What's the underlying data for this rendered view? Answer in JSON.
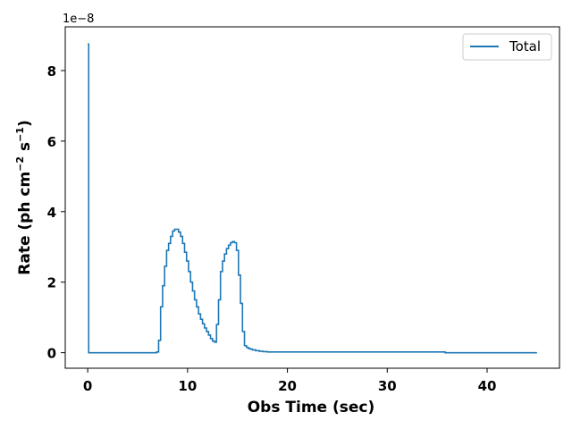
{
  "chart_data": {
    "type": "line",
    "drawstyle": "steps",
    "xlabel": "Obs Time (sec)",
    "ylabel_main": "Rate (ph cm",
    "ylabel_exp1": "−2",
    "ylabel_mid": " s",
    "ylabel_exp2": "−1",
    "ylabel_end": ")",
    "y_offset_text": "1e−8",
    "xlim": [
      -2.25,
      47.25
    ],
    "ylim": [
      -0.44,
      9.24
    ],
    "xticks": [
      0,
      10,
      20,
      30,
      40
    ],
    "xtick_labels": [
      "0",
      "10",
      "20",
      "30",
      "40"
    ],
    "yticks": [
      0,
      2,
      4,
      6,
      8
    ],
    "ytick_labels": [
      "0",
      "2",
      "4",
      "6",
      "8"
    ],
    "legend_position": "top-right",
    "grid": false,
    "series": [
      {
        "name": "Total",
        "color": "#1f77b4",
        "x": [
          0.0,
          0.1,
          0.5,
          1.0,
          2.0,
          3.0,
          4.0,
          5.0,
          6.0,
          6.9,
          7.1,
          7.3,
          7.5,
          7.7,
          7.9,
          8.1,
          8.3,
          8.5,
          8.7,
          8.9,
          9.1,
          9.3,
          9.5,
          9.7,
          9.9,
          10.1,
          10.3,
          10.5,
          10.7,
          10.9,
          11.1,
          11.3,
          11.5,
          11.7,
          11.9,
          12.1,
          12.3,
          12.5,
          12.7,
          12.9,
          13.1,
          13.3,
          13.5,
          13.7,
          13.9,
          14.1,
          14.3,
          14.5,
          14.7,
          14.9,
          15.1,
          15.3,
          15.5,
          15.7,
          15.9,
          16.1,
          16.3,
          16.5,
          16.8,
          17.2,
          17.6,
          18.0,
          18.6,
          19.5,
          21.0,
          25.0,
          30.0,
          35.8,
          36.0,
          40.0,
          45.0
        ],
        "values": [
          8.75,
          0.0,
          0.0,
          0.0,
          0.0,
          0.0,
          0.0,
          0.0,
          0.0,
          0.02,
          0.35,
          1.3,
          1.9,
          2.45,
          2.9,
          3.1,
          3.3,
          3.45,
          3.5,
          3.5,
          3.42,
          3.3,
          3.1,
          2.85,
          2.6,
          2.3,
          2.0,
          1.75,
          1.5,
          1.3,
          1.1,
          0.95,
          0.82,
          0.7,
          0.6,
          0.5,
          0.4,
          0.33,
          0.3,
          0.8,
          1.5,
          2.3,
          2.6,
          2.8,
          2.95,
          3.05,
          3.12,
          3.15,
          3.12,
          2.9,
          2.2,
          1.4,
          0.6,
          0.2,
          0.15,
          0.12,
          0.1,
          0.08,
          0.06,
          0.04,
          0.03,
          0.02,
          0.02,
          0.02,
          0.02,
          0.02,
          0.02,
          0.0,
          0.0,
          0.0,
          0.0
        ]
      }
    ]
  }
}
